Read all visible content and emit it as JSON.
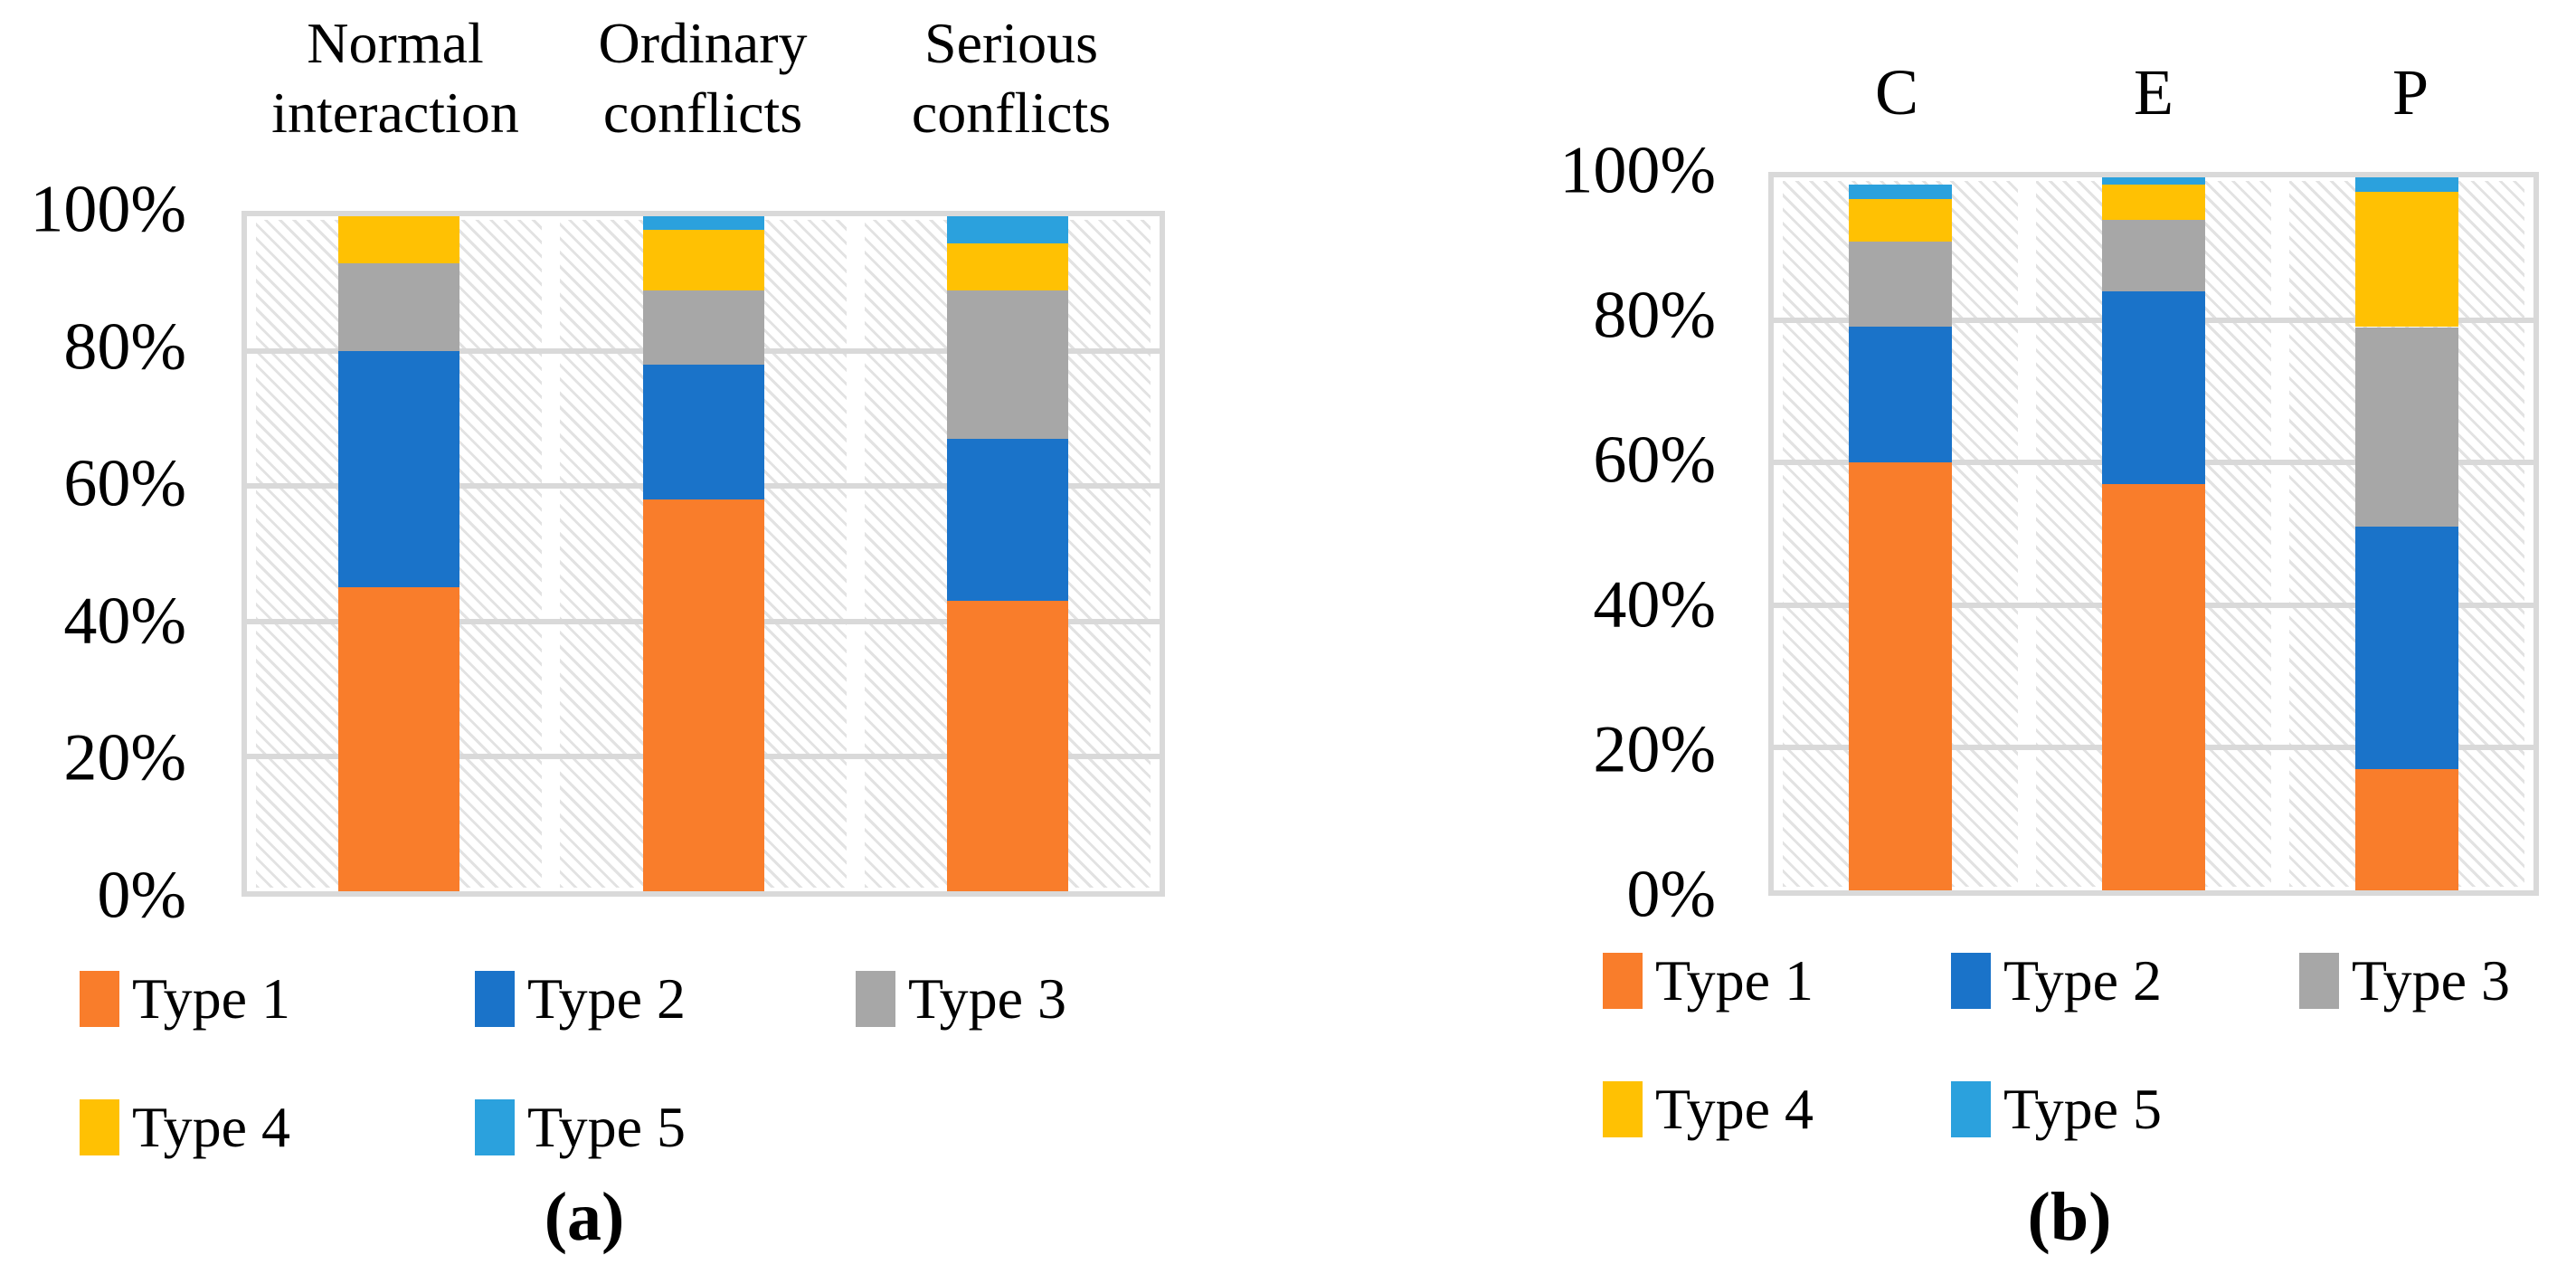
{
  "chart_data": [
    {
      "type": "bar",
      "stacked": true,
      "units": "percent",
      "title": "",
      "caption": "(a)",
      "categories": [
        "Normal interaction",
        "Ordinary conflicts",
        "Serious conflicts"
      ],
      "yticks": [
        "100%",
        "80%",
        "60%",
        "40%",
        "20%",
        "0%"
      ],
      "ylim": [
        0,
        100
      ],
      "grid": true,
      "plot_background": "light-diagonal-hatch",
      "legend_position": "bottom",
      "series": [
        {
          "name": "Type 1",
          "color": "#F97D2B",
          "values": [
            45,
            58,
            43
          ]
        },
        {
          "name": "Type 2",
          "color": "#1A73C9",
          "values": [
            35,
            20,
            24
          ]
        },
        {
          "name": "Type 3",
          "color": "#A7A7A7",
          "values": [
            13,
            11,
            22
          ]
        },
        {
          "name": "Type 4",
          "color": "#FFC103",
          "values": [
            7,
            9,
            7
          ]
        },
        {
          "name": "Type 5",
          "color": "#2BA1DD",
          "values": [
            0,
            2,
            4
          ]
        }
      ]
    },
    {
      "type": "bar",
      "stacked": true,
      "units": "percent",
      "title": "",
      "caption": "(b)",
      "categories": [
        "C",
        "E",
        "P"
      ],
      "yticks": [
        "100%",
        "80%",
        "60%",
        "40%",
        "20%",
        "0%"
      ],
      "ylim": [
        0,
        100
      ],
      "grid": true,
      "plot_background": "light-diagonal-hatch",
      "legend_position": "bottom",
      "series": [
        {
          "name": "Type 1",
          "color": "#F97D2B",
          "values": [
            60,
            57,
            17
          ]
        },
        {
          "name": "Type 2",
          "color": "#1A73C9",
          "values": [
            19,
            27,
            34
          ]
        },
        {
          "name": "Type 3",
          "color": "#A7A7A7",
          "values": [
            12,
            10,
            28
          ]
        },
        {
          "name": "Type 4",
          "color": "#FFC103",
          "values": [
            6,
            5,
            19
          ]
        },
        {
          "name": "Type 5",
          "color": "#2BA1DD",
          "values": [
            2,
            1,
            2
          ]
        }
      ]
    }
  ],
  "style": {
    "gridline_color": "#D9D9D9",
    "hatch_color": "#DCDCDC",
    "background": "#FFFFFF"
  }
}
